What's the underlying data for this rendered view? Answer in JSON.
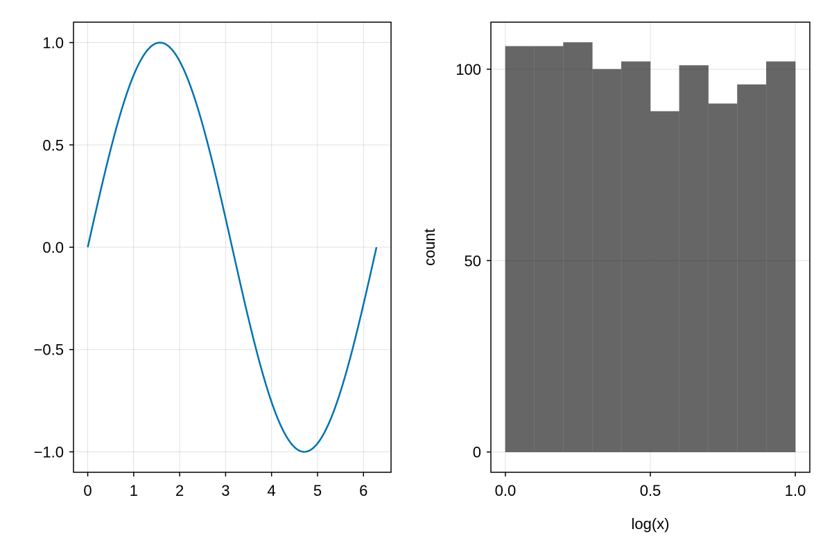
{
  "chart_data": [
    {
      "type": "line",
      "function": "sin(x)",
      "x": [
        0,
        0.3307,
        0.6614,
        0.9921,
        1.3228,
        1.5708,
        1.6535,
        1.9842,
        2.3149,
        2.6456,
        2.9762,
        3.1416,
        3.3069,
        3.6376,
        3.9683,
        4.299,
        4.6297,
        4.7124,
        4.9604,
        5.2911,
        5.6218,
        5.9525,
        6.2832
      ],
      "y": [
        0,
        0.3247,
        0.6142,
        0.8372,
        0.9694,
        1.0,
        0.9966,
        0.9158,
        0.7357,
        0.4759,
        0.1646,
        0.0,
        -0.1646,
        -0.4759,
        -0.7357,
        -0.9158,
        -0.9966,
        -1.0,
        -0.9694,
        -0.8372,
        -0.6142,
        -0.3247,
        0
      ],
      "xlim": [
        -0.31,
        6.6
      ],
      "ylim": [
        -1.1,
        1.1
      ],
      "xticks": [
        0,
        1,
        2,
        3,
        4,
        5,
        6
      ],
      "xtick_labels": [
        "0",
        "1",
        "2",
        "3",
        "4",
        "5",
        "6"
      ],
      "yticks": [
        -1.0,
        -0.5,
        0.0,
        0.5,
        1.0
      ],
      "ytick_labels": [
        "−1.0",
        "−0.5",
        "0.0",
        "0.5",
        "1.0"
      ],
      "xlabel": "",
      "ylabel": "",
      "grid": true,
      "color": "#0072b2"
    },
    {
      "type": "bar",
      "variant": "histogram",
      "bin_edges": [
        0.0,
        0.1,
        0.2,
        0.3,
        0.4,
        0.5,
        0.6,
        0.7,
        0.8,
        0.9,
        1.0
      ],
      "values": [
        106,
        106,
        107,
        100,
        102,
        89,
        101,
        91,
        96,
        102
      ],
      "xlim": [
        -0.05,
        1.05
      ],
      "ylim": [
        -5.3,
        112.3
      ],
      "xticks": [
        0.0,
        0.5,
        1.0
      ],
      "xtick_labels": [
        "0.0",
        "0.5",
        "1.0"
      ],
      "yticks": [
        0,
        50,
        100
      ],
      "ytick_labels": [
        "0",
        "50",
        "100"
      ],
      "xlabel": "log(x)",
      "ylabel": "count",
      "grid": true,
      "color": "#666666"
    }
  ]
}
